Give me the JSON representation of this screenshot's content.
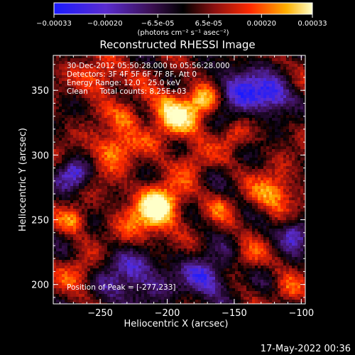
{
  "chart_data": {
    "type": "heatmap",
    "title": "Reconstructed RHESSI Image",
    "xlabel": "Heliocentric X (arcsec)",
    "ylabel": "Heliocentric Y (arcsec)",
    "xlim": [
      -285,
      -97
    ],
    "ylim": [
      185,
      377
    ],
    "xticks": [
      -250,
      -200,
      -150,
      -100
    ],
    "yticks": [
      200,
      250,
      300,
      350
    ],
    "colorbar": {
      "min": -0.00033,
      "max": 0.00033,
      "ticks": [
        "-0.00033",
        "-0.00020",
        "-6.5e-05",
        "6.5e-05",
        "0.00020",
        "0.00033"
      ],
      "units_label": "(photons cm⁻² s⁻¹ asec⁻²)",
      "colors": [
        "#1a1aff",
        "#5a2cd0",
        "#3a0f50",
        "#000000",
        "#8b1010",
        "#ff2a00",
        "#ffb000",
        "#ffffc8"
      ]
    },
    "peak": {
      "x": -277,
      "y": 233
    },
    "annotations": {
      "time": "30-Dec-2012 05:50:28.000 to 05:56:28.000",
      "detectors": "Detectors: 3F 4F 5F 6F 7F 8F, Att 0",
      "energy": "Energy Range: 12.0 - 25.0 keV",
      "clean": "Clean     Total counts: 8.25E+03",
      "peak_text": "Position of Peak = [-277,233]"
    }
  },
  "footer": {
    "date": "17-May-2022 00:36"
  }
}
